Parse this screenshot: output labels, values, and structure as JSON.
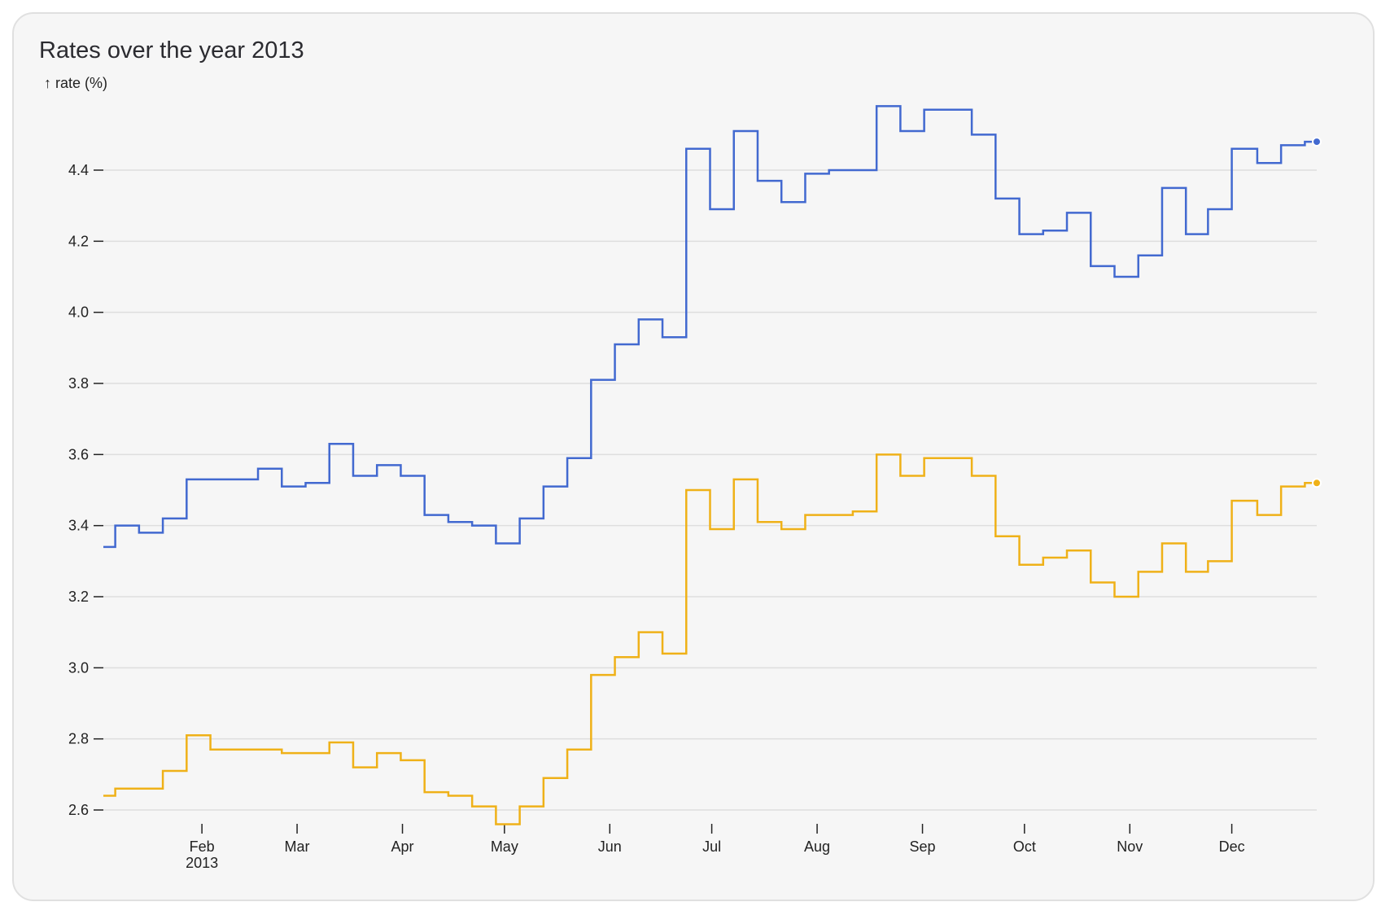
{
  "chart_data": {
    "type": "line",
    "curve": "step",
    "title": "Rates over the year 2013",
    "ylabel": "↑ rate (%)",
    "xlabel": "",
    "ylim": [
      2.56,
      4.58
    ],
    "yticks": [
      "2.6",
      "2.8",
      "3.0",
      "3.2",
      "3.4",
      "3.6",
      "3.8",
      "4.0",
      "4.2",
      "4.4"
    ],
    "xticks": [
      {
        "date": "2013-02-01",
        "label": "Feb",
        "sub": "2013"
      },
      {
        "date": "2013-03-01",
        "label": "Mar"
      },
      {
        "date": "2013-04-01",
        "label": "Apr"
      },
      {
        "date": "2013-05-01",
        "label": "May"
      },
      {
        "date": "2013-06-01",
        "label": "Jun"
      },
      {
        "date": "2013-07-01",
        "label": "Jul"
      },
      {
        "date": "2013-08-01",
        "label": "Aug"
      },
      {
        "date": "2013-09-01",
        "label": "Sep"
      },
      {
        "date": "2013-10-01",
        "label": "Oct"
      },
      {
        "date": "2013-11-01",
        "label": "Nov"
      },
      {
        "date": "2013-12-01",
        "label": "Dec"
      }
    ],
    "grid": true,
    "x": [
      "2013-01-03",
      "2013-01-10",
      "2013-01-17",
      "2013-01-24",
      "2013-01-31",
      "2013-02-07",
      "2013-02-14",
      "2013-02-21",
      "2013-02-28",
      "2013-03-07",
      "2013-03-14",
      "2013-03-21",
      "2013-03-28",
      "2013-04-04",
      "2013-04-11",
      "2013-04-18",
      "2013-04-25",
      "2013-05-02",
      "2013-05-09",
      "2013-05-16",
      "2013-05-23",
      "2013-05-30",
      "2013-06-06",
      "2013-06-13",
      "2013-06-20",
      "2013-06-27",
      "2013-07-04",
      "2013-07-11",
      "2013-07-18",
      "2013-07-25",
      "2013-08-01",
      "2013-08-08",
      "2013-08-15",
      "2013-08-22",
      "2013-08-29",
      "2013-09-05",
      "2013-09-12",
      "2013-09-19",
      "2013-09-26",
      "2013-10-03",
      "2013-10-10",
      "2013-10-17",
      "2013-10-24",
      "2013-10-31",
      "2013-11-07",
      "2013-11-14",
      "2013-11-21",
      "2013-11-27",
      "2013-12-05",
      "2013-12-12",
      "2013-12-19",
      "2013-12-26"
    ],
    "series": [
      {
        "color": "#4269d0",
        "values": [
          3.34,
          3.4,
          3.38,
          3.42,
          3.53,
          3.53,
          3.53,
          3.56,
          3.51,
          3.52,
          3.63,
          3.54,
          3.57,
          3.54,
          3.43,
          3.41,
          3.4,
          3.35,
          3.42,
          3.51,
          3.59,
          3.81,
          3.91,
          3.98,
          3.93,
          4.46,
          4.29,
          4.51,
          4.37,
          4.31,
          4.39,
          4.4,
          4.4,
          4.58,
          4.51,
          4.57,
          4.57,
          4.5,
          4.32,
          4.22,
          4.23,
          4.28,
          4.13,
          4.1,
          4.16,
          4.35,
          4.22,
          4.29,
          4.46,
          4.42,
          4.47,
          4.48
        ]
      },
      {
        "color": "#efb118",
        "values": [
          2.64,
          2.66,
          2.66,
          2.71,
          2.81,
          2.77,
          2.77,
          2.77,
          2.76,
          2.76,
          2.79,
          2.72,
          2.76,
          2.74,
          2.65,
          2.64,
          2.61,
          2.56,
          2.61,
          2.69,
          2.77,
          2.98,
          3.03,
          3.1,
          3.04,
          3.5,
          3.39,
          3.53,
          3.41,
          3.39,
          3.43,
          3.43,
          3.44,
          3.6,
          3.54,
          3.59,
          3.59,
          3.54,
          3.37,
          3.29,
          3.31,
          3.33,
          3.24,
          3.2,
          3.27,
          3.35,
          3.27,
          3.3,
          3.47,
          3.43,
          3.51,
          3.52
        ]
      }
    ]
  }
}
